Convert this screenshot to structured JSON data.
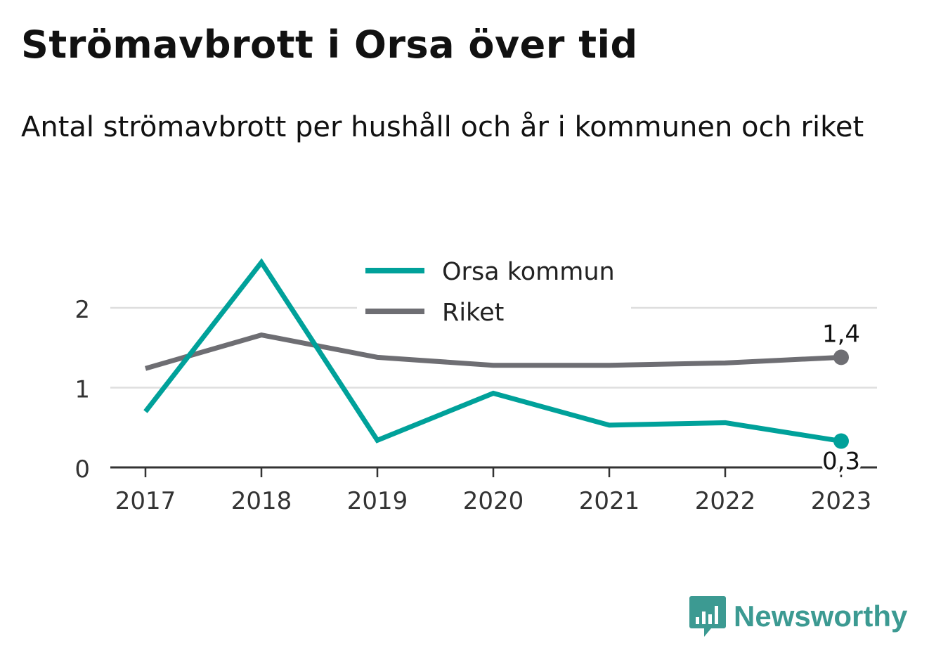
{
  "title": "Strömavbrott i Orsa över tid",
  "subtitle": "Antal strömavbrott per hushåll och år i kommunen och riket",
  "brand": {
    "name": "Newsworthy",
    "color": "#3c9a92"
  },
  "chart_data": {
    "type": "line",
    "x": [
      "2017",
      "2018",
      "2019",
      "2020",
      "2021",
      "2022",
      "2023"
    ],
    "yticks": [
      "0",
      "1",
      "2"
    ],
    "ylim": [
      0,
      2.6
    ],
    "grid": true,
    "legend_position": "top-center",
    "series": [
      {
        "name": "Orsa kommun",
        "color": "#00a19a",
        "values": [
          0.7,
          2.57,
          0.34,
          0.93,
          0.53,
          0.56,
          0.33
        ],
        "end_label": "0,3"
      },
      {
        "name": "Riket",
        "color": "#6e6e73",
        "values": [
          1.24,
          1.66,
          1.38,
          1.28,
          1.28,
          1.31,
          1.38
        ],
        "end_label": "1,4"
      }
    ]
  }
}
